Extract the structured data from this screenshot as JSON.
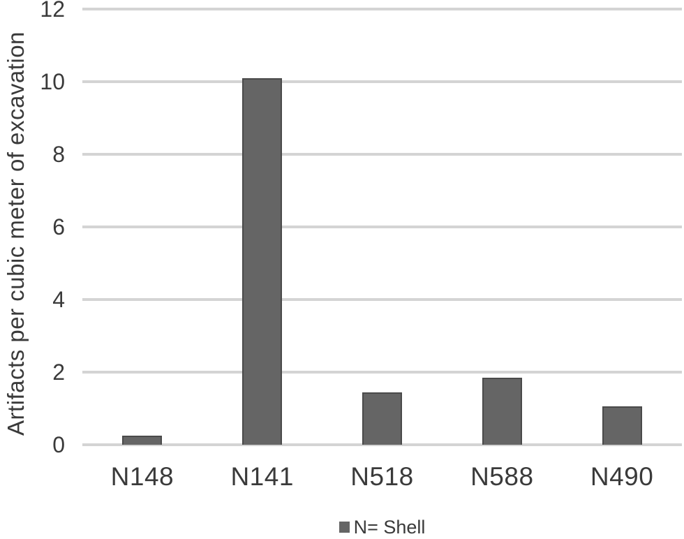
{
  "chart_data": {
    "type": "bar",
    "title": "",
    "categories": [
      "N148",
      "N141",
      "N518",
      "N588",
      "N490"
    ],
    "values": [
      0.25,
      10.1,
      1.45,
      1.85,
      1.05
    ],
    "series": [
      {
        "name": "N= Shell",
        "values": [
          0.25,
          10.1,
          1.45,
          1.85,
          1.05
        ]
      }
    ],
    "xlabel": "",
    "ylabel": "Artifacts per cubic meter of excavation",
    "ylim": [
      0,
      12
    ],
    "yticks": [
      0,
      2,
      4,
      6,
      8,
      10,
      12
    ],
    "grid": "horizontal",
    "legend_label": "N= Shell",
    "legend_position": "bottom-center",
    "colors": {
      "bar_fill": "#656565",
      "bar_border": "#4a4a4a",
      "gridline": "#d4d4d4",
      "text": "#3a3a3a",
      "background": "#ffffff"
    }
  }
}
